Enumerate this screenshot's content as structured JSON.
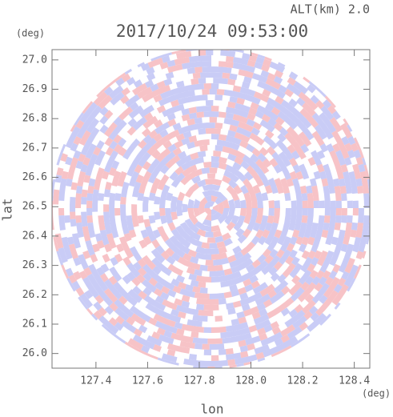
{
  "chart_data": {
    "type": "radar-ppi",
    "title": "2017/10/24 09:53:00",
    "subtitle": "ALT(km) 2.0",
    "y_unit": "(deg)",
    "x_unit": "(deg)",
    "xlabel": "lon",
    "ylabel": "lat",
    "xlim": [
      127.23,
      128.46
    ],
    "ylim": [
      25.95,
      27.035
    ],
    "xticks": [
      {
        "value": 127.4,
        "label": "127.4"
      },
      {
        "value": 127.6,
        "label": "127.6"
      },
      {
        "value": 127.8,
        "label": "127.8"
      },
      {
        "value": 128.0,
        "label": "128.0"
      },
      {
        "value": 128.2,
        "label": "128.2"
      },
      {
        "value": 128.4,
        "label": "128.4"
      }
    ],
    "yticks": [
      {
        "value": 26.0,
        "label": "26.0"
      },
      {
        "value": 26.1,
        "label": "26.1"
      },
      {
        "value": 26.2,
        "label": "26.2"
      },
      {
        "value": 26.3,
        "label": "26.3"
      },
      {
        "value": 26.4,
        "label": "26.4"
      },
      {
        "value": 26.5,
        "label": "26.5"
      },
      {
        "value": 26.6,
        "label": "26.6"
      },
      {
        "value": 26.7,
        "label": "26.7"
      },
      {
        "value": 26.8,
        "label": "26.8"
      },
      {
        "value": 26.9,
        "label": "26.9"
      },
      {
        "value": 27.0,
        "label": "27.0"
      }
    ]
  }
}
